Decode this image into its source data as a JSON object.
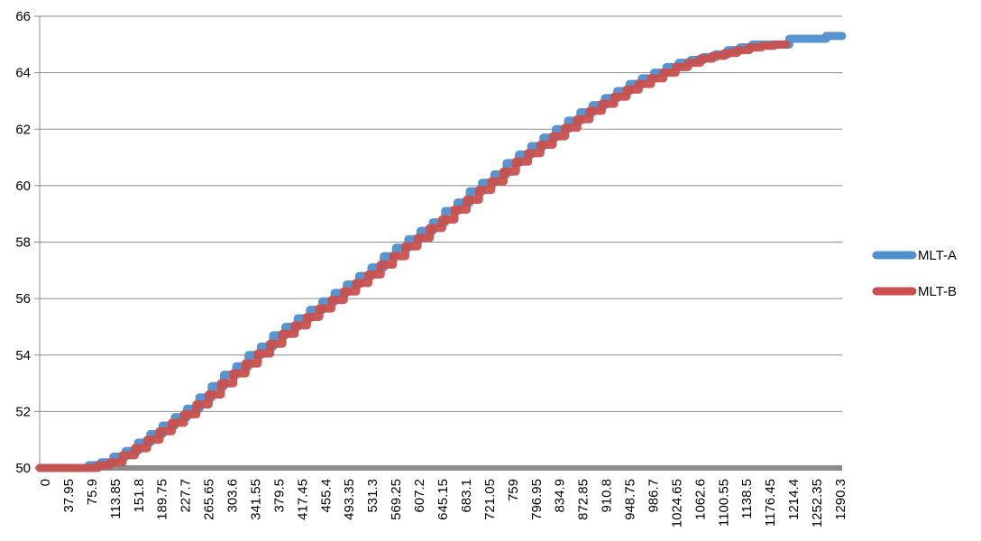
{
  "chart_data": {
    "type": "line",
    "title": "",
    "xlabel": "",
    "ylabel": "",
    "ylim": [
      50,
      66
    ],
    "y_ticks": [
      50,
      52,
      54,
      56,
      58,
      60,
      62,
      64,
      66
    ],
    "x_tick_labels": [
      "0",
      "37.95",
      "75.9",
      "113.85",
      "151.8",
      "189.75",
      "227.7",
      "265.65",
      "303.6",
      "341.55",
      "379.5",
      "417.45",
      "455.4",
      "493.35",
      "531.3",
      "569.25",
      "607.2",
      "645.15",
      "683.1",
      "721.05",
      "759",
      "796.95",
      "834.9",
      "872.85",
      "910.8",
      "948.75",
      "986.7",
      "1024.65",
      "1062.6",
      "1100.55",
      "1138.5",
      "1176.45",
      "1214.4",
      "1252.35",
      "1290.3"
    ],
    "xlim": [
      0,
      1306
    ],
    "grid": "horizontal",
    "legend_position": "right",
    "series": [
      {
        "name": "MLT-A",
        "color": "#4f8fcd",
        "points": [
          [
            0,
            50
          ],
          [
            60,
            50
          ],
          [
            80,
            50.1
          ],
          [
            100,
            50.2
          ],
          [
            120,
            50.4
          ],
          [
            140,
            50.6
          ],
          [
            160,
            50.9
          ],
          [
            180,
            51.2
          ],
          [
            200,
            51.5
          ],
          [
            220,
            51.8
          ],
          [
            240,
            52.1
          ],
          [
            260,
            52.5
          ],
          [
            280,
            52.9
          ],
          [
            300,
            53.3
          ],
          [
            320,
            53.6
          ],
          [
            340,
            54.0
          ],
          [
            360,
            54.3
          ],
          [
            380,
            54.7
          ],
          [
            400,
            55.0
          ],
          [
            420,
            55.3
          ],
          [
            440,
            55.6
          ],
          [
            460,
            55.9
          ],
          [
            480,
            56.2
          ],
          [
            500,
            56.5
          ],
          [
            520,
            56.8
          ],
          [
            540,
            57.1
          ],
          [
            560,
            57.5
          ],
          [
            580,
            57.8
          ],
          [
            600,
            58.1
          ],
          [
            620,
            58.4
          ],
          [
            640,
            58.7
          ],
          [
            660,
            59.1
          ],
          [
            680,
            59.4
          ],
          [
            700,
            59.8
          ],
          [
            720,
            60.1
          ],
          [
            740,
            60.4
          ],
          [
            760,
            60.8
          ],
          [
            780,
            61.1
          ],
          [
            800,
            61.4
          ],
          [
            820,
            61.7
          ],
          [
            840,
            62.0
          ],
          [
            860,
            62.3
          ],
          [
            880,
            62.6
          ],
          [
            900,
            62.85
          ],
          [
            920,
            63.1
          ],
          [
            940,
            63.35
          ],
          [
            960,
            63.6
          ],
          [
            980,
            63.8
          ],
          [
            1000,
            64.0
          ],
          [
            1020,
            64.2
          ],
          [
            1040,
            64.35
          ],
          [
            1060,
            64.45
          ],
          [
            1080,
            64.55
          ],
          [
            1100,
            64.65
          ],
          [
            1120,
            64.8
          ],
          [
            1140,
            64.9
          ],
          [
            1160,
            65.0
          ],
          [
            1180,
            65.0
          ],
          [
            1200,
            65.0
          ],
          [
            1220,
            65.2
          ],
          [
            1240,
            65.2
          ],
          [
            1260,
            65.2
          ],
          [
            1280,
            65.3
          ],
          [
            1306,
            65.3
          ]
        ]
      },
      {
        "name": "MLT-B",
        "color": "#c9504c",
        "points": [
          [
            0,
            50
          ],
          [
            75,
            50
          ],
          [
            95,
            50.1
          ],
          [
            115,
            50.2
          ],
          [
            135,
            50.45
          ],
          [
            155,
            50.7
          ],
          [
            175,
            51.0
          ],
          [
            195,
            51.3
          ],
          [
            215,
            51.6
          ],
          [
            235,
            51.9
          ],
          [
            255,
            52.25
          ],
          [
            275,
            52.6
          ],
          [
            295,
            53.0
          ],
          [
            315,
            53.35
          ],
          [
            335,
            53.7
          ],
          [
            355,
            54.05
          ],
          [
            375,
            54.4
          ],
          [
            395,
            54.75
          ],
          [
            415,
            55.05
          ],
          [
            435,
            55.35
          ],
          [
            455,
            55.65
          ],
          [
            475,
            55.95
          ],
          [
            495,
            56.25
          ],
          [
            515,
            56.55
          ],
          [
            535,
            56.85
          ],
          [
            555,
            57.2
          ],
          [
            575,
            57.5
          ],
          [
            595,
            57.85
          ],
          [
            615,
            58.15
          ],
          [
            635,
            58.5
          ],
          [
            655,
            58.8
          ],
          [
            675,
            59.15
          ],
          [
            695,
            59.5
          ],
          [
            715,
            59.85
          ],
          [
            735,
            60.15
          ],
          [
            755,
            60.5
          ],
          [
            775,
            60.85
          ],
          [
            795,
            61.15
          ],
          [
            815,
            61.45
          ],
          [
            835,
            61.75
          ],
          [
            855,
            62.05
          ],
          [
            875,
            62.35
          ],
          [
            895,
            62.65
          ],
          [
            915,
            62.9
          ],
          [
            935,
            63.15
          ],
          [
            955,
            63.4
          ],
          [
            975,
            63.6
          ],
          [
            995,
            63.8
          ],
          [
            1015,
            64.0
          ],
          [
            1035,
            64.2
          ],
          [
            1055,
            64.35
          ],
          [
            1075,
            64.5
          ],
          [
            1095,
            64.6
          ],
          [
            1115,
            64.7
          ],
          [
            1135,
            64.8
          ],
          [
            1155,
            64.9
          ],
          [
            1175,
            64.95
          ],
          [
            1195,
            65.0
          ],
          [
            1215,
            65.0
          ]
        ]
      }
    ]
  }
}
